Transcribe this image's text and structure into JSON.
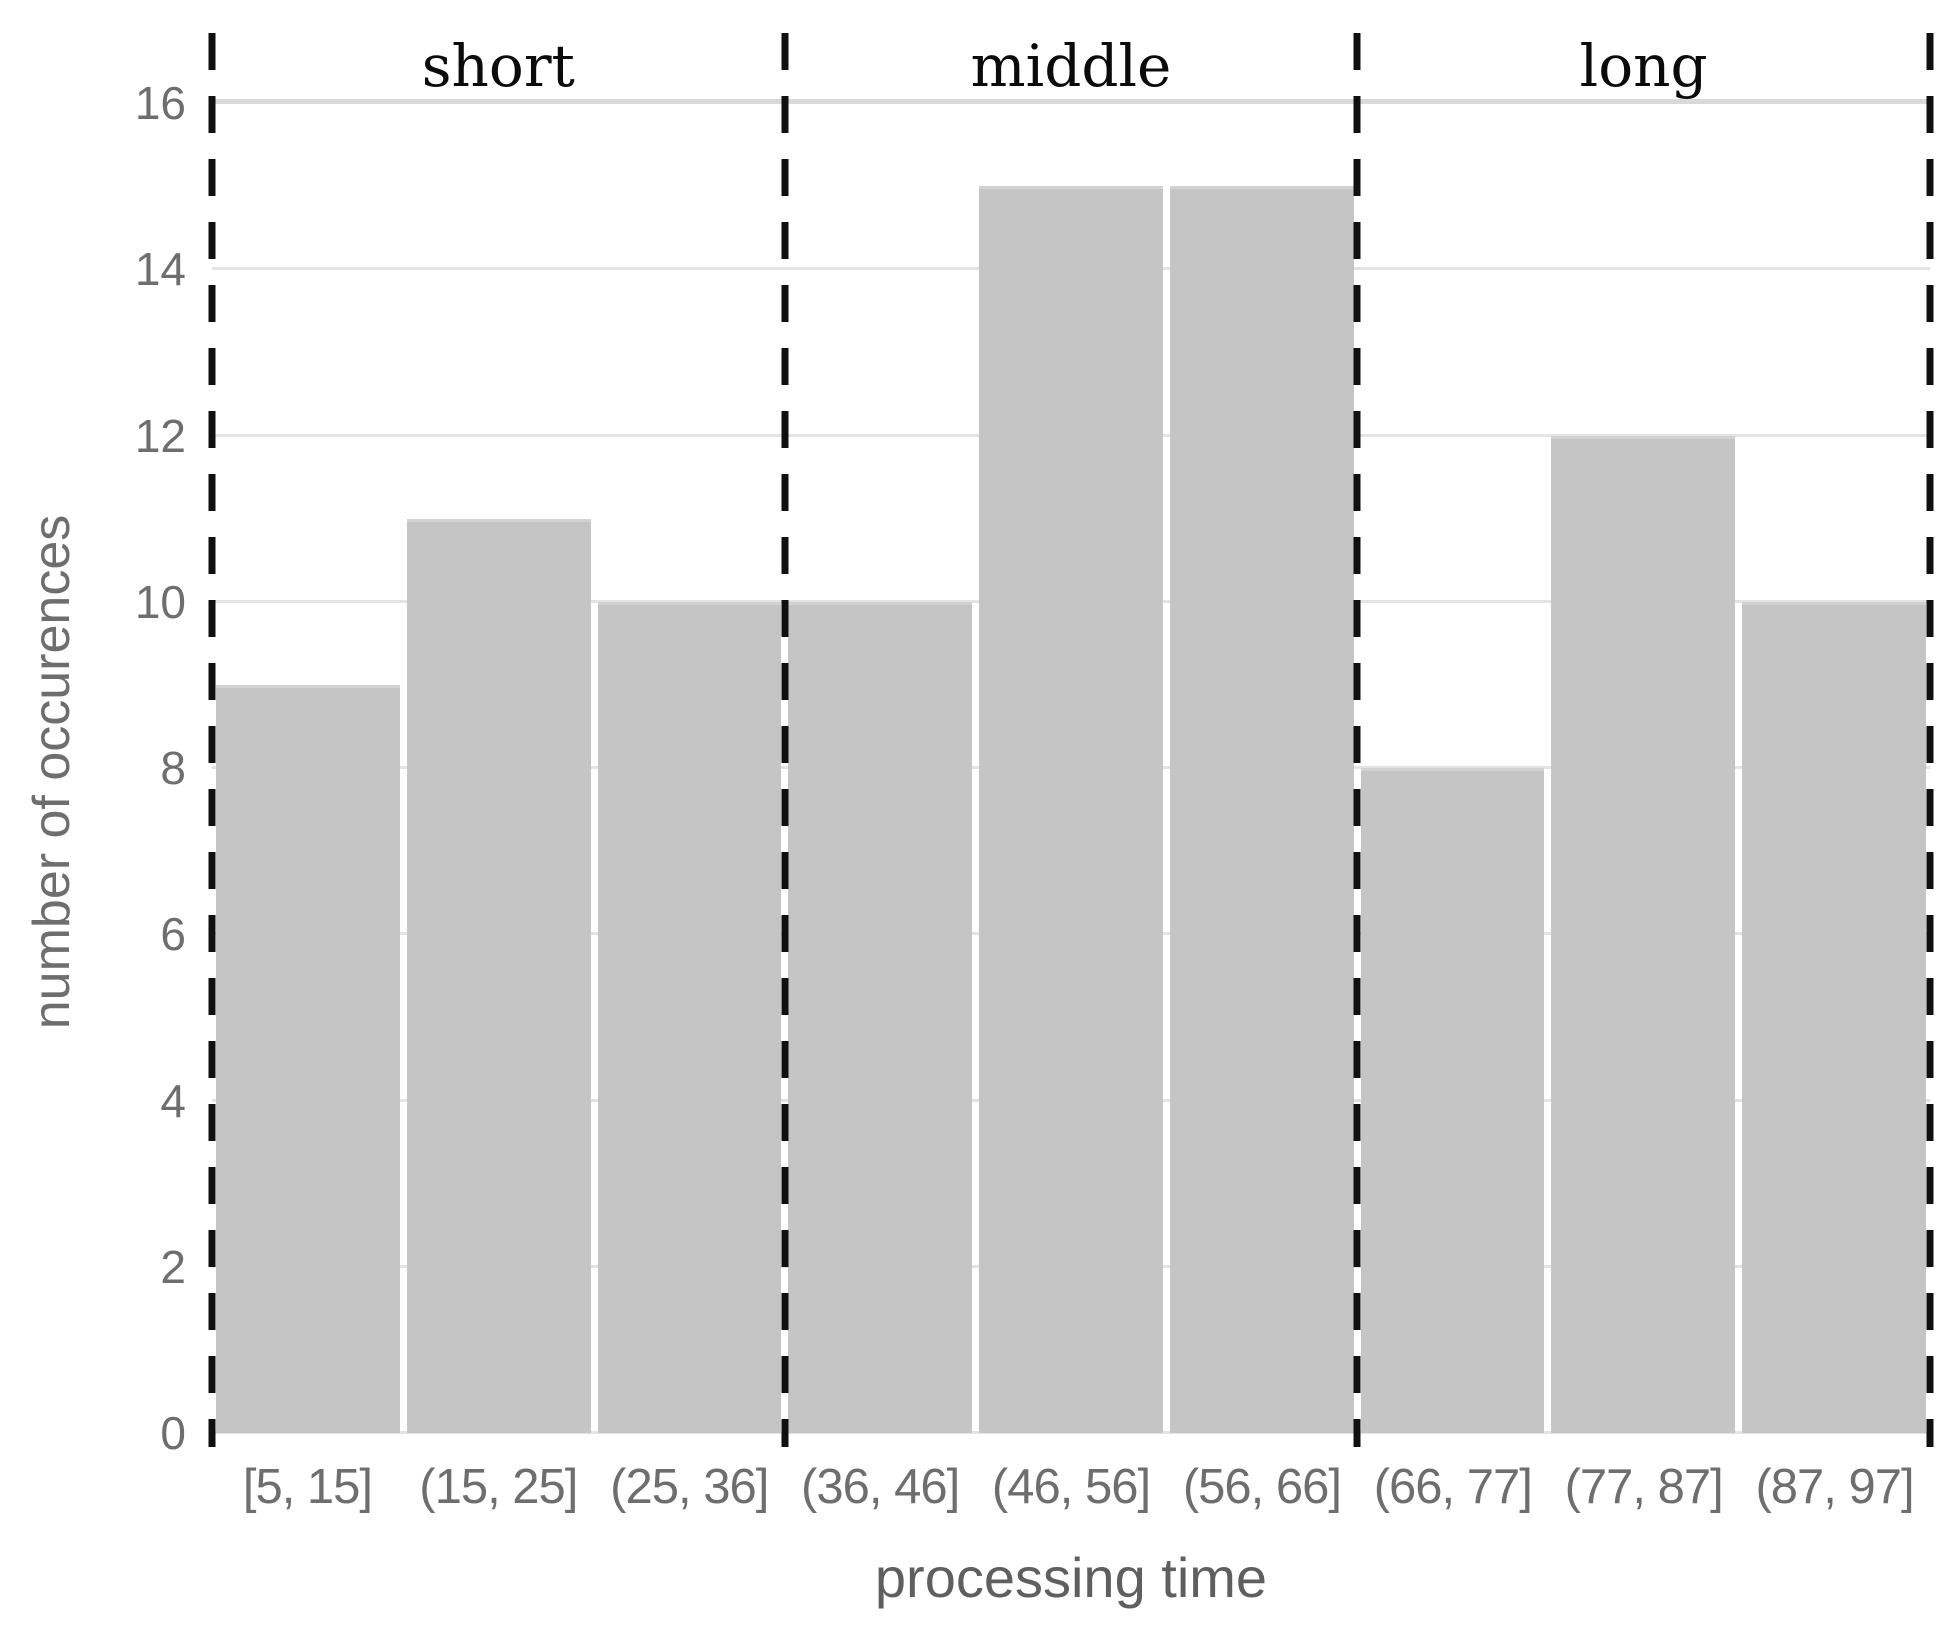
{
  "chart_data": {
    "type": "bar",
    "subtype": "histogram",
    "title": "",
    "categories": [
      "[5, 15]",
      "(15, 25]",
      "(25, 36]",
      "(36, 46]",
      "(46, 56]",
      "(56, 66]",
      "(66, 77]",
      "(77, 87]",
      "(87, 97]"
    ],
    "values": [
      9,
      11,
      10,
      10,
      15,
      15,
      8,
      12,
      10
    ],
    "xlabel": "processing time",
    "ylabel": "number of occurences",
    "ylim": [
      0,
      16
    ],
    "yticks": [
      0,
      2,
      4,
      6,
      8,
      10,
      12,
      14,
      16
    ],
    "grid": "horizontal",
    "legend_position": "none",
    "regions": [
      {
        "label": "short",
        "bins": [
          "[5, 15]",
          "(15, 25]",
          "(25, 36]"
        ]
      },
      {
        "label": "middle",
        "bins": [
          "(36, 46]",
          "(46, 56]",
          "(56, 66]"
        ]
      },
      {
        "label": "long",
        "bins": [
          "(66, 77]",
          "(77, 87]",
          "(87, 97]"
        ]
      }
    ],
    "divider_bin_boundaries": [
      0,
      3,
      6,
      9
    ],
    "colors": {
      "background": "#ffffff",
      "bar": "#c5c5c5",
      "gridline": "#e4e4e4",
      "tick_text": "#6e6e6e",
      "axis_label_text": "#5f5f5f",
      "region_text": "#0b0b0b",
      "divider": "#101010"
    }
  }
}
